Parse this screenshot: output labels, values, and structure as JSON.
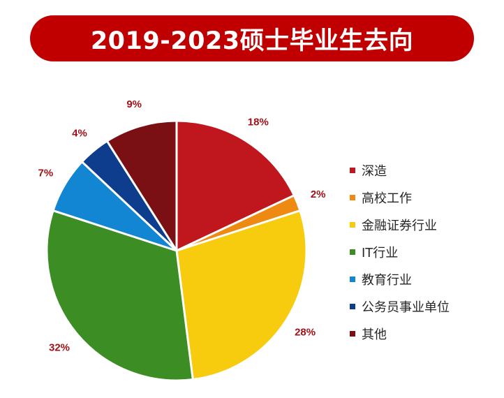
{
  "title": "2019-2023硕士毕业生去向",
  "chart_data": {
    "type": "pie",
    "title": "2019-2023硕士毕业生去向",
    "legend_position": "right",
    "slices": [
      {
        "label": "深造",
        "value": 18,
        "display": "18%",
        "color": "#c0171f"
      },
      {
        "label": "高校工作",
        "value": 2,
        "display": "2%",
        "color": "#ee8a12"
      },
      {
        "label": "金融证券行业",
        "value": 28,
        "display": "28%",
        "color": "#f7cc0e"
      },
      {
        "label": "IT行业",
        "value": 32,
        "display": "32%",
        "color": "#3b8d24"
      },
      {
        "label": "教育行业",
        "value": 7,
        "display": "7%",
        "color": "#1286d3"
      },
      {
        "label": "公务员事业单位",
        "value": 4,
        "display": "4%",
        "color": "#0d3d8c"
      },
      {
        "label": "其他",
        "value": 9,
        "display": "9%",
        "color": "#7a1014"
      }
    ],
    "label_color": "#a11218"
  }
}
